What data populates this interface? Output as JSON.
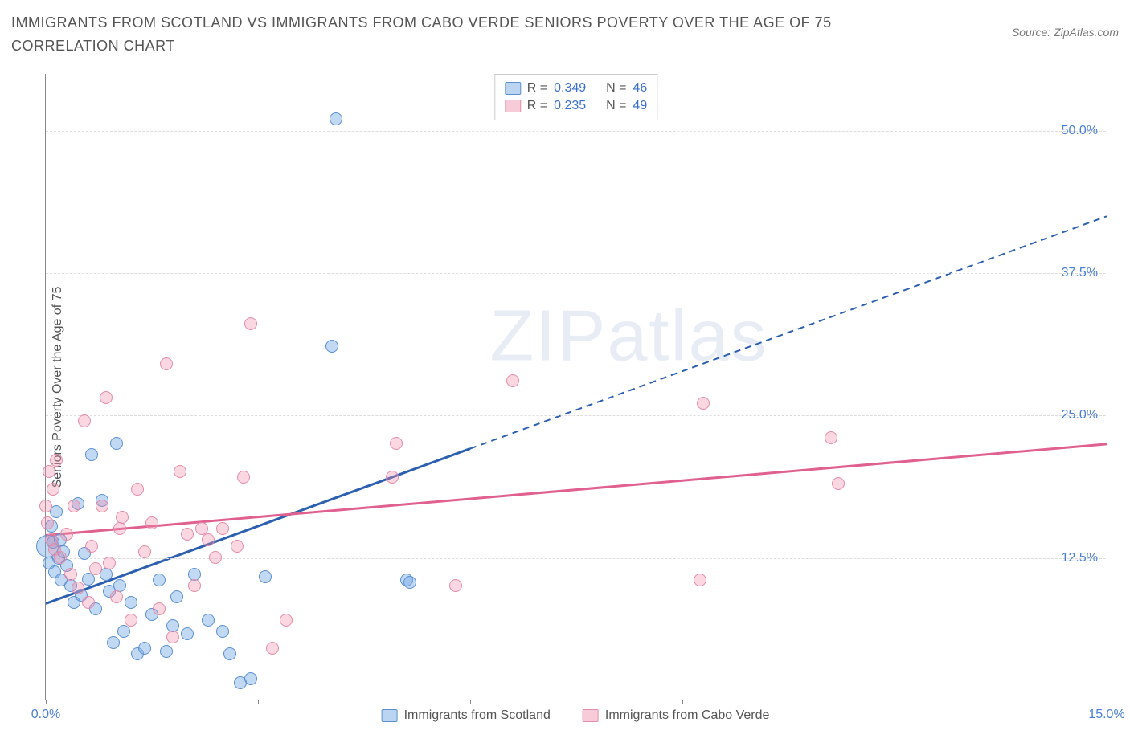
{
  "title": "IMMIGRANTS FROM SCOTLAND VS IMMIGRANTS FROM CABO VERDE SENIORS POVERTY OVER THE AGE OF 75 CORRELATION CHART",
  "source_label": "Source: ZipAtlas.com",
  "y_axis_label": "Seniors Poverty Over the Age of 75",
  "watermark": "ZIPatlas",
  "chart": {
    "type": "scatter",
    "xlim": [
      0,
      15
    ],
    "ylim": [
      0,
      55
    ],
    "x_ticks": [
      0,
      3,
      6,
      9,
      12,
      15
    ],
    "x_tick_labels": {
      "0": "0.0%",
      "15": "15.0%"
    },
    "y_ticks": [
      12.5,
      25,
      37.5,
      50
    ],
    "y_tick_labels": [
      "12.5%",
      "25.0%",
      "37.5%",
      "50.0%"
    ],
    "background_color": "#ffffff",
    "grid_color": "#dddddd",
    "axis_color": "#888888",
    "tick_label_color": "#4a7fd6",
    "series": [
      {
        "name": "Immigrants from Scotland",
        "color_fill": "rgba(120,170,230,0.45)",
        "color_stroke": "#5b8fd0",
        "line_color": "#2c5fb0",
        "marker_radius": 8,
        "r_value": 0.349,
        "n_value": 46,
        "trend": {
          "x1": 0,
          "y1": 8.5,
          "x2": 15,
          "y2": 42.5,
          "solid_until_x": 6.0
        },
        "points": [
          {
            "x": 0.02,
            "y": 13.5,
            "r": 14
          },
          {
            "x": 0.05,
            "y": 12.0
          },
          {
            "x": 0.08,
            "y": 15.2
          },
          {
            "x": 0.1,
            "y": 13.8
          },
          {
            "x": 0.12,
            "y": 11.2
          },
          {
            "x": 0.15,
            "y": 16.5
          },
          {
            "x": 0.18,
            "y": 12.4
          },
          {
            "x": 0.2,
            "y": 14.0
          },
          {
            "x": 0.22,
            "y": 10.5
          },
          {
            "x": 0.25,
            "y": 13.0
          },
          {
            "x": 0.3,
            "y": 11.8
          },
          {
            "x": 0.35,
            "y": 10.0
          },
          {
            "x": 0.4,
            "y": 8.5
          },
          {
            "x": 0.45,
            "y": 17.2
          },
          {
            "x": 0.5,
            "y": 9.2
          },
          {
            "x": 0.55,
            "y": 12.8
          },
          {
            "x": 0.6,
            "y": 10.6
          },
          {
            "x": 0.65,
            "y": 21.5
          },
          {
            "x": 0.7,
            "y": 8.0
          },
          {
            "x": 0.8,
            "y": 17.5
          },
          {
            "x": 0.85,
            "y": 11.0
          },
          {
            "x": 0.9,
            "y": 9.5
          },
          {
            "x": 0.95,
            "y": 5.0
          },
          {
            "x": 1.0,
            "y": 22.5
          },
          {
            "x": 1.05,
            "y": 10.0
          },
          {
            "x": 1.1,
            "y": 6.0
          },
          {
            "x": 1.3,
            "y": 4.0
          },
          {
            "x": 1.4,
            "y": 4.5
          },
          {
            "x": 1.5,
            "y": 7.5
          },
          {
            "x": 1.6,
            "y": 10.5
          },
          {
            "x": 1.7,
            "y": 4.2
          },
          {
            "x": 1.8,
            "y": 6.5
          },
          {
            "x": 1.85,
            "y": 9.0
          },
          {
            "x": 2.0,
            "y": 5.8
          },
          {
            "x": 2.1,
            "y": 11.0
          },
          {
            "x": 2.3,
            "y": 7.0
          },
          {
            "x": 2.5,
            "y": 6.0
          },
          {
            "x": 2.6,
            "y": 4.0
          },
          {
            "x": 2.75,
            "y": 1.5
          },
          {
            "x": 2.9,
            "y": 1.8
          },
          {
            "x": 3.1,
            "y": 10.8
          },
          {
            "x": 4.05,
            "y": 31.0
          },
          {
            "x": 4.1,
            "y": 51.0
          },
          {
            "x": 5.1,
            "y": 10.5
          },
          {
            "x": 5.15,
            "y": 10.3
          },
          {
            "x": 1.2,
            "y": 8.5
          }
        ]
      },
      {
        "name": "Immigrants from Cabo Verde",
        "color_fill": "rgba(240,140,170,0.35)",
        "color_stroke": "#e38ca8",
        "line_color": "#e06090",
        "marker_radius": 8,
        "r_value": 0.235,
        "n_value": 49,
        "trend": {
          "x1": 0,
          "y1": 14.5,
          "x2": 15,
          "y2": 22.5,
          "solid_until_x": 15
        },
        "points": [
          {
            "x": 0.0,
            "y": 17.0
          },
          {
            "x": 0.02,
            "y": 15.5
          },
          {
            "x": 0.05,
            "y": 20.0
          },
          {
            "x": 0.08,
            "y": 14.0
          },
          {
            "x": 0.1,
            "y": 18.5
          },
          {
            "x": 0.12,
            "y": 13.2
          },
          {
            "x": 0.15,
            "y": 21.0
          },
          {
            "x": 0.2,
            "y": 12.5
          },
          {
            "x": 0.3,
            "y": 14.5
          },
          {
            "x": 0.35,
            "y": 11.0
          },
          {
            "x": 0.4,
            "y": 17.0
          },
          {
            "x": 0.45,
            "y": 9.8
          },
          {
            "x": 0.55,
            "y": 24.5
          },
          {
            "x": 0.6,
            "y": 8.5
          },
          {
            "x": 0.65,
            "y": 13.5
          },
          {
            "x": 0.7,
            "y": 11.5
          },
          {
            "x": 0.8,
            "y": 17.0
          },
          {
            "x": 0.85,
            "y": 26.5
          },
          {
            "x": 0.9,
            "y": 12.0
          },
          {
            "x": 1.0,
            "y": 9.0
          },
          {
            "x": 1.08,
            "y": 16.0
          },
          {
            "x": 1.2,
            "y": 7.0
          },
          {
            "x": 1.3,
            "y": 18.5
          },
          {
            "x": 1.4,
            "y": 13.0
          },
          {
            "x": 1.5,
            "y": 15.5
          },
          {
            "x": 1.6,
            "y": 8.0
          },
          {
            "x": 1.7,
            "y": 29.5
          },
          {
            "x": 1.8,
            "y": 5.5
          },
          {
            "x": 1.9,
            "y": 20.0
          },
          {
            "x": 2.0,
            "y": 14.5
          },
          {
            "x": 2.1,
            "y": 10.0
          },
          {
            "x": 2.2,
            "y": 15.0
          },
          {
            "x": 2.3,
            "y": 14.0
          },
          {
            "x": 2.4,
            "y": 12.5
          },
          {
            "x": 2.5,
            "y": 15.0
          },
          {
            "x": 2.7,
            "y": 13.5
          },
          {
            "x": 2.8,
            "y": 19.5
          },
          {
            "x": 2.9,
            "y": 33.0
          },
          {
            "x": 3.2,
            "y": 4.5
          },
          {
            "x": 3.4,
            "y": 7.0
          },
          {
            "x": 4.9,
            "y": 19.5
          },
          {
            "x": 4.95,
            "y": 22.5
          },
          {
            "x": 5.8,
            "y": 10.0
          },
          {
            "x": 6.6,
            "y": 28.0
          },
          {
            "x": 9.25,
            "y": 10.5
          },
          {
            "x": 9.3,
            "y": 26.0
          },
          {
            "x": 11.1,
            "y": 23.0
          },
          {
            "x": 11.2,
            "y": 19.0
          },
          {
            "x": 1.05,
            "y": 15.0
          }
        ]
      }
    ]
  },
  "legend": {
    "r_label": "R =",
    "n_label": "N ="
  }
}
